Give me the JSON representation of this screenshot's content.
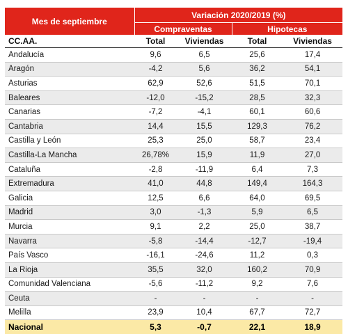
{
  "header": {
    "month_title": "Mes de septiembre",
    "variation_title": "Variación 2020/2019 (%)",
    "group_compraventas": "Compraventas",
    "group_hipotecas": "Hipotecas"
  },
  "columns": {
    "region": "CC.AA.",
    "compraventas_total": "Total",
    "compraventas_viviendas": "Viviendas",
    "hipotecas_total": "Total",
    "hipotecas_viviendas": "Viviendas"
  },
  "rows": [
    {
      "name": "Andalucía",
      "cv_total": "9,6",
      "cv_viv": "6,5",
      "hip_total": "25,6",
      "hip_viv": "17,4"
    },
    {
      "name": "Aragón",
      "cv_total": "-4,2",
      "cv_viv": "5,6",
      "hip_total": "36,2",
      "hip_viv": "54,1"
    },
    {
      "name": "Asturias",
      "cv_total": "62,9",
      "cv_viv": "52,6",
      "hip_total": "51,5",
      "hip_viv": "70,1"
    },
    {
      "name": "Baleares",
      "cv_total": "-12,0",
      "cv_viv": "-15,2",
      "hip_total": "28,5",
      "hip_viv": "32,3"
    },
    {
      "name": "Canarias",
      "cv_total": "-7,2",
      "cv_viv": "-4,1",
      "hip_total": "60,1",
      "hip_viv": "60,6"
    },
    {
      "name": "Cantabria",
      "cv_total": "14,4",
      "cv_viv": "15,5",
      "hip_total": "129,3",
      "hip_viv": "76,2"
    },
    {
      "name": "Castilla y León",
      "cv_total": "25,3",
      "cv_viv": "25,0",
      "hip_total": "58,7",
      "hip_viv": "23,4"
    },
    {
      "name": "Castilla-La Mancha",
      "cv_total": "26,78%",
      "cv_viv": "15,9",
      "hip_total": "11,9",
      "hip_viv": "27,0"
    },
    {
      "name": "Cataluña",
      "cv_total": "-2,8",
      "cv_viv": "-11,9",
      "hip_total": "6,4",
      "hip_viv": "7,3"
    },
    {
      "name": "Extremadura",
      "cv_total": "41,0",
      "cv_viv": "44,8",
      "hip_total": "149,4",
      "hip_viv": "164,3"
    },
    {
      "name": "Galicia",
      "cv_total": "12,5",
      "cv_viv": "6,6",
      "hip_total": "64,0",
      "hip_viv": "69,5"
    },
    {
      "name": "Madrid",
      "cv_total": "3,0",
      "cv_viv": "-1,3",
      "hip_total": "5,9",
      "hip_viv": "6,5"
    },
    {
      "name": "Murcia",
      "cv_total": "9,1",
      "cv_viv": "2,2",
      "hip_total": "25,0",
      "hip_viv": "38,7"
    },
    {
      "name": "Navarra",
      "cv_total": "-5,8",
      "cv_viv": "-14,4",
      "hip_total": "-12,7",
      "hip_viv": "-19,4"
    },
    {
      "name": "País Vasco",
      "cv_total": "-16,1",
      "cv_viv": "-24,6",
      "hip_total": "11,2",
      "hip_viv": "0,3"
    },
    {
      "name": "La Rioja",
      "cv_total": "35,5",
      "cv_viv": "32,0",
      "hip_total": "160,2",
      "hip_viv": "70,9"
    },
    {
      "name": "Comunidad Valenciana",
      "cv_total": "-5,6",
      "cv_viv": "-11,2",
      "hip_total": "9,2",
      "hip_viv": "7,6"
    },
    {
      "name": "Ceuta",
      "cv_total": "-",
      "cv_viv": "-",
      "hip_total": "-",
      "hip_viv": "-"
    },
    {
      "name": "Melilla",
      "cv_total": "23,9",
      "cv_viv": "10,4",
      "hip_total": "67,7",
      "hip_viv": "72,7"
    }
  ],
  "total_row": {
    "name": "Nacional",
    "cv_total": "5,3",
    "cv_viv": "-0,7",
    "hip_total": "22,1",
    "hip_viv": "18,9"
  },
  "colors": {
    "header_red": "#e0251b",
    "row_shade": "#ebebeb",
    "total_highlight": "#fbe9a6"
  }
}
